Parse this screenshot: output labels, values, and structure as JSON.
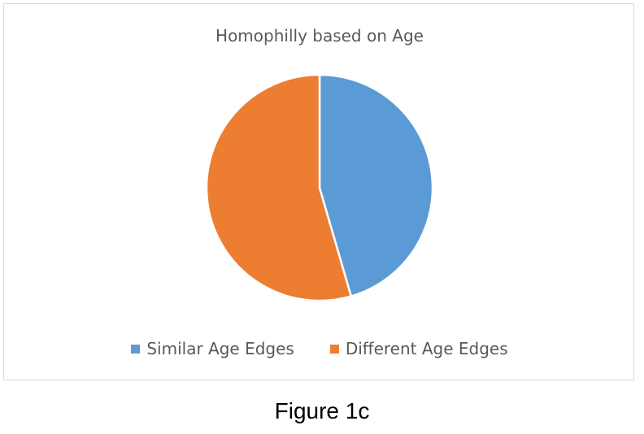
{
  "chart_data": {
    "type": "pie",
    "title": "Homophilly based on Age",
    "slices": [
      {
        "label": "Similar Age Edges",
        "value": 45.5,
        "color": "#5b9bd5"
      },
      {
        "label": "Different Age Edges",
        "value": 54.5,
        "color": "#ed7d31"
      }
    ],
    "legend_position": "bottom"
  },
  "caption": "Figure 1c"
}
